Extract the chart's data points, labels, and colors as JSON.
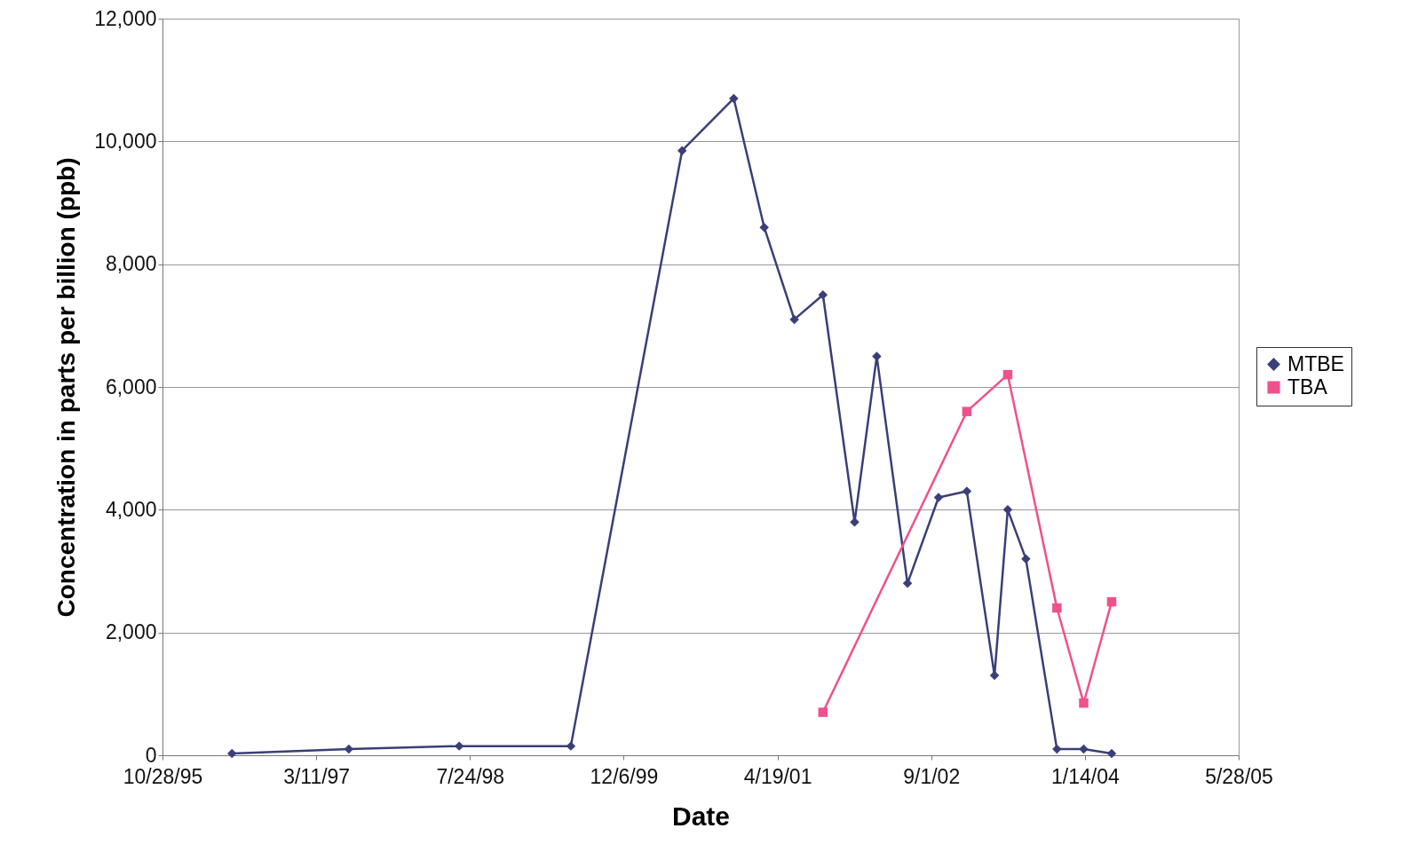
{
  "chart_data": {
    "type": "line",
    "xlabel": "Date",
    "ylabel": "Concentration in parts per billion (ppb)",
    "xlim": [
      "1995-10-28",
      "2005-05-28"
    ],
    "xticks": [
      {
        "value": "1995-10-28",
        "label": "10/28/95"
      },
      {
        "value": "1997-03-11",
        "label": "3/11/97"
      },
      {
        "value": "1998-07-24",
        "label": "7/24/98"
      },
      {
        "value": "1999-12-06",
        "label": "12/6/99"
      },
      {
        "value": "2001-04-19",
        "label": "4/19/01"
      },
      {
        "value": "2002-09-01",
        "label": "9/1/02"
      },
      {
        "value": "2004-01-14",
        "label": "1/14/04"
      },
      {
        "value": "2005-05-28",
        "label": "5/28/05"
      }
    ],
    "ylim": [
      0,
      12000
    ],
    "yticks": [
      0,
      {
        "value": 2000,
        "label": "2,000"
      },
      {
        "value": 4000,
        "label": "4,000"
      },
      {
        "value": 6000,
        "label": "6,000"
      },
      {
        "value": 8000,
        "label": "8,000"
      },
      {
        "value": 10000,
        "label": "10,000"
      },
      {
        "value": 12000,
        "label": "12,000"
      }
    ],
    "grid": "y",
    "legend": "right",
    "series": [
      {
        "name": "MTBE",
        "color": "#3b3f77",
        "marker": "diamond",
        "x": [
          "1996-06-10",
          "1997-06-25",
          "1998-06-19",
          "1999-06-17",
          "2000-06-13",
          "2000-11-28",
          "2001-03-07",
          "2001-06-13",
          "2001-09-14",
          "2001-12-26",
          "2002-03-08",
          "2002-06-16",
          "2002-09-25",
          "2002-12-26",
          "2003-03-26",
          "2003-05-08",
          "2003-07-06",
          "2003-10-15",
          "2004-01-10",
          "2004-04-10"
        ],
        "values": [
          30,
          100,
          150,
          150,
          9850,
          10700,
          8600,
          7100,
          7500,
          3800,
          6500,
          2800,
          4200,
          4300,
          1300,
          4000,
          3200,
          100,
          100,
          30
        ]
      },
      {
        "name": "TBA",
        "color": "#f0508c",
        "marker": "square",
        "x": [
          "2001-09-14",
          "2002-12-26",
          "2003-05-08",
          "2003-10-15",
          "2004-01-10",
          "2004-04-10"
        ],
        "values": [
          700,
          5600,
          6200,
          2400,
          850,
          2500
        ]
      }
    ]
  }
}
